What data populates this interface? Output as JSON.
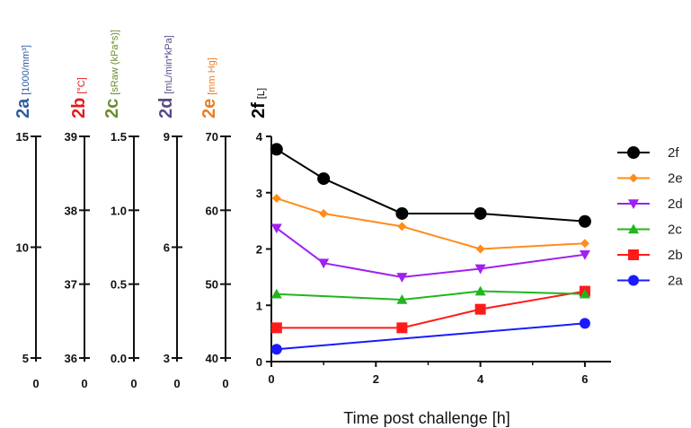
{
  "chart_data": {
    "type": "line",
    "xlabel": "Time post challenge [h]",
    "xlim": [
      0,
      6.5
    ],
    "xticks": [
      "0",
      "2",
      "4",
      "6"
    ],
    "primary_axis": {
      "ylim": [
        0,
        4
      ],
      "ticks": [
        "0",
        "1",
        "2",
        "3",
        "4"
      ]
    },
    "secondary_axes": [
      {
        "id": "2a",
        "label": "2a",
        "unit": "[1000/mm³]",
        "color": "#2e5e9e",
        "zero_label": "0",
        "ticks": [
          "5",
          "10",
          "15"
        ]
      },
      {
        "id": "2b",
        "label": "2b",
        "unit": "[°C]",
        "color": "#e8191c",
        "zero_label": "0",
        "ticks": [
          "36",
          "37",
          "38",
          "39"
        ]
      },
      {
        "id": "2c",
        "label": "2c",
        "unit": "[sRaw (kPa*s)]",
        "color": "#6e8b2e",
        "zero_label": "0",
        "ticks": [
          "0.0",
          "0.5",
          "1.0",
          "1.5"
        ]
      },
      {
        "id": "2d",
        "label": "2d",
        "unit": "[mL/min*kPa]",
        "color": "#5a4a8a",
        "zero_label": "0",
        "ticks": [
          "3",
          "6",
          "9"
        ]
      },
      {
        "id": "2e",
        "label": "2e",
        "unit": "[mm Hg]",
        "color": "#ee7d22",
        "zero_label": "0",
        "ticks": [
          "40",
          "50",
          "60",
          "70"
        ]
      },
      {
        "id": "2f",
        "label": "2f",
        "unit": "[L]",
        "color": "#000000"
      }
    ],
    "series": [
      {
        "name": "2f",
        "color": "#000000",
        "marker": "circle",
        "x": [
          0.1,
          1,
          2.5,
          4,
          6
        ],
        "y": [
          3.77,
          3.25,
          2.63,
          2.63,
          2.49
        ]
      },
      {
        "name": "2e",
        "color": "#ff8c1a",
        "marker": "diamond",
        "x": [
          0.1,
          1,
          2.5,
          4,
          6
        ],
        "y": [
          2.9,
          2.63,
          2.4,
          2.0,
          2.1
        ]
      },
      {
        "name": "2d",
        "color": "#a020f0",
        "marker": "triangle-down",
        "x": [
          0.1,
          1,
          2.5,
          4,
          6
        ],
        "y": [
          2.37,
          1.75,
          1.5,
          1.65,
          1.9
        ]
      },
      {
        "name": "2c",
        "color": "#22b51f",
        "marker": "triangle-up",
        "x": [
          0.1,
          2.5,
          4,
          6
        ],
        "y": [
          1.2,
          1.1,
          1.25,
          1.2
        ]
      },
      {
        "name": "2b",
        "color": "#ff1a1a",
        "marker": "square",
        "x": [
          0.1,
          2.5,
          4,
          6
        ],
        "y": [
          0.6,
          0.6,
          0.93,
          1.25
        ]
      },
      {
        "name": "2a",
        "color": "#1a1aff",
        "marker": "circle",
        "x": [
          0.1,
          6
        ],
        "y": [
          0.22,
          0.68
        ]
      }
    ],
    "legend_position": "right",
    "grid": false
  }
}
